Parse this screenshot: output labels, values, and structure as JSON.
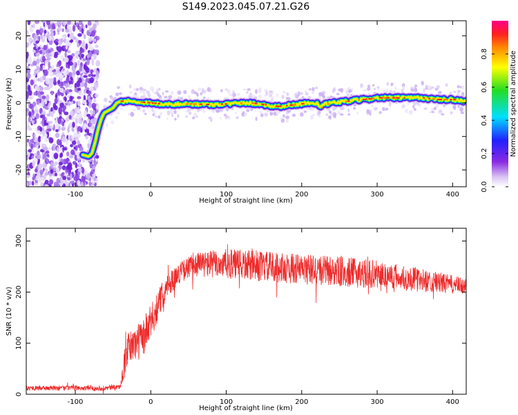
{
  "title": "S149.2023.045.07.21.G26",
  "chart_data": [
    {
      "type": "heatmap",
      "xlabel": "Height of straight line (km)",
      "ylabel": "Frequency (Hz)",
      "xlim": [
        -165,
        418
      ],
      "ylim": [
        -25,
        24.5
      ],
      "xticks": [
        -100,
        0,
        100,
        200,
        300,
        400
      ],
      "yticks": [
        -20,
        -10,
        0,
        10,
        20
      ],
      "colorbar": {
        "label": "Normalized spectral amplitude",
        "range": [
          0,
          1
        ],
        "ticks": [
          "0.0",
          "0.2",
          "0.4",
          "0.6",
          "0.8"
        ],
        "colormap": "rainbow (white-violet-blue-cyan-green-yellow-red-magenta)"
      },
      "ridge": {
        "x": [
          -90,
          -82,
          -78,
          -74,
          -70,
          -66,
          -62,
          -58,
          -54,
          -50,
          -45,
          -40,
          -30,
          -20,
          0,
          20,
          50,
          80,
          100,
          130,
          150,
          160,
          175,
          190,
          210,
          220,
          225,
          230,
          240,
          260,
          280,
          300,
          320,
          340,
          360,
          380,
          400,
          418
        ],
        "y": [
          -15.5,
          -16,
          -15,
          -12,
          -8,
          -5,
          -3,
          -2.5,
          -2,
          -1.5,
          0,
          0.5,
          0.5,
          0.3,
          0,
          -0.5,
          -0.3,
          -0.5,
          -0.3,
          0,
          -0.5,
          -1,
          -1,
          -0.5,
          0,
          0,
          -1.5,
          -0.5,
          0,
          0.5,
          1,
          1.5,
          1.5,
          1.5,
          1.5,
          1,
          1,
          0.5
        ]
      }
    },
    {
      "type": "line",
      "xlabel": "Height of straight line (km)",
      "ylabel": "SNR (10 * v/v)",
      "xlim": [
        -165,
        418
      ],
      "ylim": [
        0,
        325
      ],
      "xticks": [
        -100,
        0,
        100,
        200,
        300,
        400
      ],
      "yticks": [
        0,
        100,
        200,
        300
      ],
      "color": "#ee2b2b",
      "envelope": {
        "x": [
          -165,
          -60,
          -40,
          -35,
          -30,
          -20,
          -10,
          0,
          10,
          20,
          40,
          60,
          100,
          150,
          200,
          250,
          300,
          350,
          400,
          418
        ],
        "mean": [
          12,
          12,
          15,
          60,
          90,
          100,
          110,
          140,
          175,
          210,
          240,
          255,
          255,
          250,
          245,
          240,
          235,
          225,
          215,
          210
        ],
        "spread": [
          5,
          5,
          5,
          25,
          30,
          35,
          40,
          35,
          30,
          25,
          20,
          25,
          30,
          30,
          30,
          30,
          28,
          24,
          18,
          16
        ]
      }
    }
  ]
}
